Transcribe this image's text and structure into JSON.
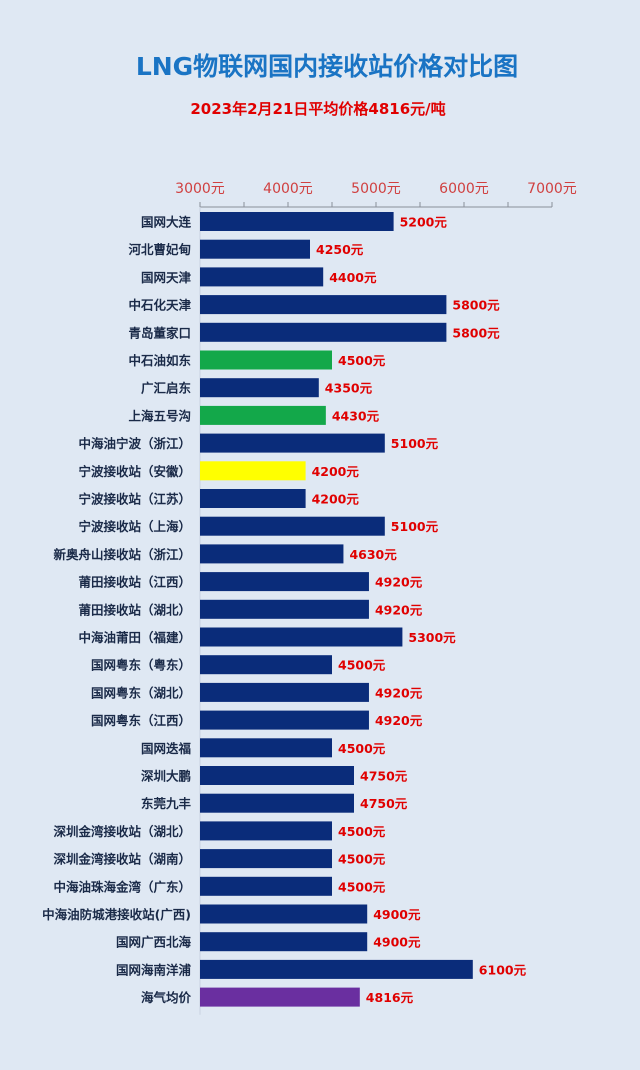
{
  "colors": {
    "background": "#dfe8f3",
    "title": "#1a74c4",
    "subtitle": "#e00000",
    "tick_label": "#d04040",
    "category_label": "#1a2a48",
    "value_label": "#e00000",
    "bar_default": "#0a2c7a",
    "bar_green": "#13a84a",
    "bar_yellow": "#ffff00",
    "bar_purple": "#6a2fa0"
  },
  "chart_data": {
    "type": "bar",
    "orientation": "horizontal",
    "title": "LNG物联网国内接收站价格对比图",
    "subtitle": "2023年2月21日平均价格4816元/吨",
    "xlim": [
      3000,
      7000
    ],
    "ticks": [
      3000,
      4000,
      5000,
      6000,
      7000
    ],
    "tick_labels": [
      "3000元",
      "4000元",
      "5000元",
      "6000元",
      "7000元"
    ],
    "axis_position": "top",
    "grid": false,
    "categories": [
      "国网大连",
      "河北曹妃甸",
      "国网天津",
      "中石化天津",
      "青岛董家口",
      "中石油如东",
      "广汇启东",
      "上海五号沟",
      "中海油宁波（浙江）",
      "宁波接收站（安徽）",
      "宁波接收站（江苏）",
      "宁波接收站（上海）",
      "新奥舟山接收站（浙江）",
      "莆田接收站（江西）",
      "莆田接收站（湖北）",
      "中海油莆田（福建）",
      "国网粤东（粤东）",
      "国网粤东（湖北）",
      "国网粤东（江西）",
      "国网迭福",
      "深圳大鹏",
      "东莞九丰",
      "深圳金湾接收站（湖北）",
      "深圳金湾接收站（湖南）",
      "中海油珠海金湾（广东）",
      "中海油防城港接收站(广西)",
      "国网广西北海",
      "国网海南洋浦",
      "海气均价"
    ],
    "values": [
      5200,
      4250,
      4400,
      5800,
      5800,
      4500,
      4350,
      4430,
      5100,
      4200,
      4200,
      5100,
      4630,
      4920,
      4920,
      5300,
      4500,
      4920,
      4920,
      4500,
      4750,
      4750,
      4500,
      4500,
      4500,
      4900,
      4900,
      6100,
      4816
    ],
    "value_labels": [
      "5200元",
      "4250元",
      "4400元",
      "5800元",
      "5800元",
      "4500元",
      "4350元",
      "4430元",
      "5100元",
      "4200元",
      "4200元",
      "5100元",
      "4630元",
      "4920元",
      "4920元",
      "5300元",
      "4500元",
      "4920元",
      "4920元",
      "4500元",
      "4750元",
      "4750元",
      "4500元",
      "4500元",
      "4500元",
      "4900元",
      "4900元",
      "6100元",
      "4816元"
    ],
    "bar_colors": [
      "bar_default",
      "bar_default",
      "bar_default",
      "bar_default",
      "bar_default",
      "bar_green",
      "bar_default",
      "bar_green",
      "bar_default",
      "bar_yellow",
      "bar_default",
      "bar_default",
      "bar_default",
      "bar_default",
      "bar_default",
      "bar_default",
      "bar_default",
      "bar_default",
      "bar_default",
      "bar_default",
      "bar_default",
      "bar_default",
      "bar_default",
      "bar_default",
      "bar_default",
      "bar_default",
      "bar_default",
      "bar_default",
      "bar_purple"
    ]
  }
}
